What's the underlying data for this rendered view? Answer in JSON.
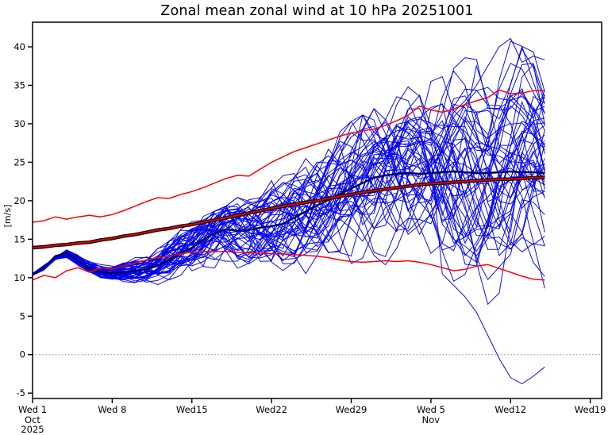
{
  "title": "Zonal mean zonal wind at 10 hPa 20251001",
  "chart_data": {
    "type": "line",
    "title": "Zonal mean zonal wind at 10 hPa 20251001",
    "ylabel": "[m/s]",
    "xlabel": "",
    "x_unit": "days since Wed Oct 1 2025",
    "forecast_length_days": 45,
    "xlim": [
      0,
      50
    ],
    "ylim": [
      -5.7,
      43.2
    ],
    "grid": false,
    "legend": "none",
    "zero_reference_line": 0,
    "y_ticks": [
      -5,
      0,
      5,
      10,
      15,
      20,
      25,
      30,
      35,
      40
    ],
    "x_ticks": [
      {
        "day": 0,
        "label": "Wed 1",
        "sub": [
          "Oct",
          "2025"
        ]
      },
      {
        "day": 7,
        "label": "Wed 8",
        "sub": []
      },
      {
        "day": 14,
        "label": "Wed15",
        "sub": []
      },
      {
        "day": 21,
        "label": "Wed22",
        "sub": []
      },
      {
        "day": 28,
        "label": "Wed29",
        "sub": []
      },
      {
        "day": 35,
        "label": "Wed 5",
        "sub": [
          "Nov"
        ]
      },
      {
        "day": 42,
        "label": "Wed12",
        "sub": []
      },
      {
        "day": 49,
        "label": "Wed19",
        "sub": []
      }
    ],
    "colors": {
      "ensemble_member": "#0000ee",
      "ensemble_mean": "#000060",
      "climatology_mean_core": "#dd0000",
      "climatology_mean_outline": "#000000",
      "climatology_band": "#ff0000",
      "zero_line": "#888888",
      "axis": "#000000"
    },
    "series": [
      {
        "name": "ensemble-mean",
        "style": "thick-navy",
        "x_step_days": 1,
        "values": [
          10.4,
          11.3,
          12.8,
          13.2,
          12.2,
          11.2,
          10.7,
          10.6,
          10.7,
          10.9,
          11.1,
          11.6,
          12.3,
          13.2,
          13.9,
          14.9,
          15.8,
          16.3,
          16.1,
          16.2,
          16.5,
          16.7,
          17.0,
          17.8,
          18.6,
          19.4,
          20.1,
          20.9,
          21.6,
          22.3,
          23.0,
          23.3,
          23.5,
          23.6,
          23.5,
          23.6,
          23.7,
          23.8,
          23.7,
          23.6,
          23.6,
          23.7,
          23.8,
          23.7,
          23.7,
          23.6
        ]
      },
      {
        "name": "climatology-mean",
        "style": "thick-dark-red",
        "x_step_days": 1,
        "values": [
          13.9,
          14.0,
          14.2,
          14.3,
          14.5,
          14.6,
          14.9,
          15.1,
          15.4,
          15.6,
          15.9,
          16.2,
          16.4,
          16.7,
          16.9,
          17.2,
          17.5,
          17.8,
          18.1,
          18.4,
          18.7,
          19.0,
          19.3,
          19.5,
          19.8,
          20.0,
          20.3,
          20.6,
          20.8,
          21.1,
          21.3,
          21.5,
          21.7,
          21.9,
          22.1,
          22.2,
          22.3,
          22.4,
          22.5,
          22.6,
          22.7,
          22.8,
          22.8,
          22.9,
          23.0,
          23.0
        ]
      },
      {
        "name": "climatology-upper",
        "style": "thin-red",
        "x_step_days": 1,
        "values": [
          17.2,
          17.4,
          17.9,
          17.6,
          17.9,
          18.1,
          17.9,
          18.2,
          18.7,
          19.3,
          19.9,
          20.4,
          20.3,
          20.8,
          21.2,
          21.7,
          22.3,
          22.9,
          23.3,
          23.2,
          24.1,
          25.0,
          25.7,
          26.4,
          26.9,
          27.4,
          27.9,
          28.4,
          28.8,
          29.1,
          29.3,
          29.8,
          30.4,
          31.1,
          32.3,
          31.8,
          31.5,
          31.9,
          32.5,
          33.0,
          33.4,
          34.4,
          33.9,
          34.0,
          34.3,
          34.3
        ]
      },
      {
        "name": "climatology-lower",
        "style": "thin-red",
        "x_step_days": 1,
        "values": [
          9.7,
          10.3,
          10.0,
          10.9,
          11.3,
          10.7,
          11.3,
          11.1,
          11.5,
          11.9,
          12.3,
          12.6,
          12.8,
          13.1,
          13.3,
          13.4,
          13.4,
          13.4,
          13.3,
          13.2,
          13.2,
          13.1,
          13.1,
          13.0,
          12.9,
          12.8,
          12.6,
          12.3,
          12.1,
          12.0,
          12.1,
          12.2,
          12.1,
          12.2,
          12.0,
          11.7,
          11.3,
          10.9,
          11.1,
          11.5,
          11.7,
          11.2,
          10.7,
          10.2,
          9.8,
          9.7
        ]
      }
    ],
    "ensemble": {
      "n_members": 51,
      "seed": 20251001,
      "x_step_days": 1,
      "spread_std_keyframes": {
        "d": [
          0,
          2,
          4,
          7,
          10,
          14,
          17,
          21,
          25,
          28,
          31,
          35,
          38,
          42,
          45
        ],
        "v": [
          0.15,
          0.35,
          0.6,
          0.75,
          1.2,
          2.3,
          3.1,
          3.9,
          4.5,
          5.3,
          5.7,
          6.6,
          7.1,
          8.3,
          8.0
        ]
      },
      "envelope_max_keyframes": {
        "d": [
          0,
          3,
          7,
          10,
          14,
          17,
          21,
          25,
          28,
          31,
          35,
          38,
          42,
          45
        ],
        "v": [
          10.8,
          13.8,
          12.0,
          13.2,
          17.5,
          19.5,
          24.0,
          28.0,
          30.5,
          33.0,
          37.0,
          38.8,
          41.0,
          38.8
        ]
      },
      "envelope_min_keyframes": {
        "d": [
          0,
          3,
          7,
          10,
          14,
          17,
          21,
          25,
          28,
          31,
          35,
          38,
          42,
          43,
          45
        ],
        "v": [
          10.1,
          12.2,
          9.0,
          8.0,
          7.0,
          5.2,
          6.5,
          7.5,
          4.9,
          6.8,
          5.5,
          5.0,
          -1.0,
          -3.8,
          -1.8
        ]
      },
      "outlier_paths": [
        {
          "member": 20,
          "from_day": 36,
          "values": [
            10.5,
            9.0,
            7.5,
            5.5,
            2.5,
            -0.5,
            -3.0,
            -3.8,
            -2.8,
            -1.6
          ]
        },
        {
          "member": 5,
          "from_day": 37,
          "values": [
            31.5,
            33.0,
            35.0,
            37.5,
            40.0,
            41.1,
            38.0,
            38.8,
            38.3
          ]
        }
      ]
    }
  }
}
